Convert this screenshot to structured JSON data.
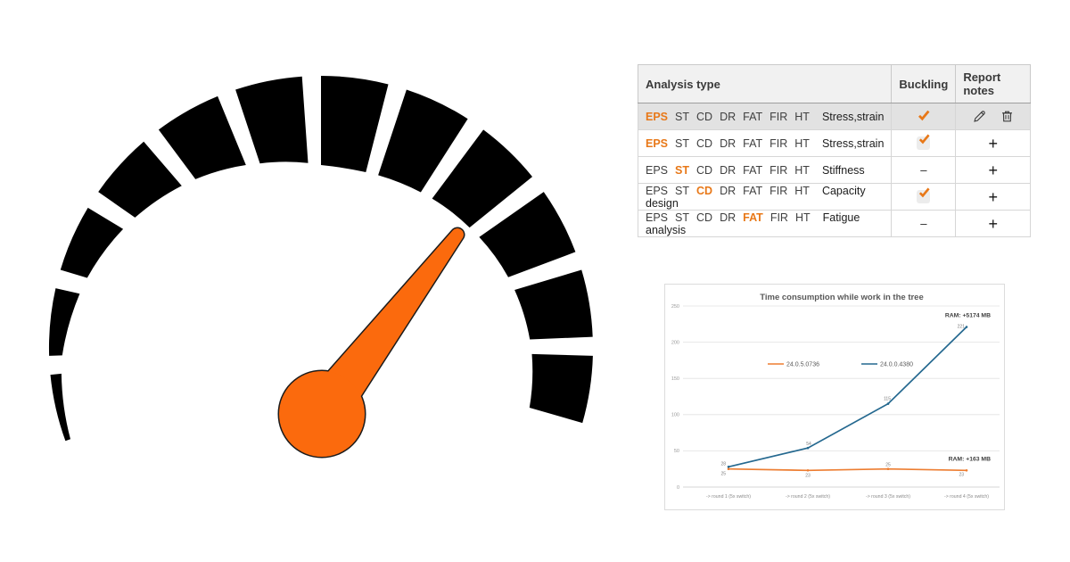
{
  "page": {
    "background": "#ffffff"
  },
  "gauge": {
    "name": "speedometer",
    "segments": 12,
    "segment_color": "#000000",
    "needle_color": "#fb6a0d",
    "needle_outline": "#1b1b1b"
  },
  "table": {
    "accent_color": "#e87818",
    "headers": [
      {
        "label": "Analysis type"
      },
      {
        "label": "Buckling"
      },
      {
        "label": "Report notes"
      }
    ],
    "icons": {
      "edit": "pencil-icon",
      "delete": "trash-icon",
      "add": "plus-icon",
      "check": "check-icon"
    },
    "rows": [
      {
        "tokens": [
          "EPS",
          "ST",
          "CD",
          "DR",
          "FAT",
          "FIR",
          "HT"
        ],
        "active_token": "EPS",
        "analysis_label": "Stress,strain",
        "buckling": "check",
        "notes": [
          "edit",
          "delete"
        ],
        "selected": true
      },
      {
        "tokens": [
          "EPS",
          "ST",
          "CD",
          "DR",
          "FAT",
          "FIR",
          "HT"
        ],
        "active_token": "EPS",
        "analysis_label": "Stress,strain",
        "buckling": "checkbox_checked",
        "notes": [
          "add"
        ],
        "selected": false
      },
      {
        "tokens": [
          "EPS",
          "ST",
          "CD",
          "DR",
          "FAT",
          "FIR",
          "HT"
        ],
        "active_token": "ST",
        "analysis_label": "Stiffness",
        "buckling": "none",
        "notes": [
          "add"
        ],
        "selected": false
      },
      {
        "tokens": [
          "EPS",
          "ST",
          "CD",
          "DR",
          "FAT",
          "FIR",
          "HT"
        ],
        "active_token": "CD",
        "analysis_label": "Capacity design",
        "buckling": "checkbox_checked",
        "notes": [
          "add"
        ],
        "selected": false
      },
      {
        "tokens": [
          "EPS",
          "ST",
          "CD",
          "DR",
          "FAT",
          "FIR",
          "HT"
        ],
        "active_token": "FAT",
        "analysis_label": "Fatigue analysis",
        "buckling": "none",
        "notes": [
          "add"
        ],
        "selected": false
      }
    ]
  },
  "chart_data": {
    "type": "line",
    "title": "Time consumption while work in the tree",
    "categories": [
      "-> round 1 (5x switch)",
      "-> round 2 (5x switch)",
      "-> round 3 (5x switch)",
      "-> round 4 (5x switch)"
    ],
    "series": [
      {
        "name": "24.0.5.0736",
        "color": "#ED7D31",
        "values": [
          25,
          23,
          25,
          23
        ],
        "point_labels": [
          "25",
          "23",
          "25",
          "23"
        ],
        "annotation": "RAM: +163 MB"
      },
      {
        "name": "24.0.0.4380",
        "color": "#24688F",
        "values": [
          28,
          54,
          115,
          221
        ],
        "point_labels": [
          "28",
          "54",
          "115",
          "221"
        ],
        "annotation": "RAM: +5174 MB"
      }
    ],
    "ylim": [
      0,
      250
    ],
    "yticks": [
      0,
      50,
      100,
      150,
      200,
      250
    ],
    "grid": true,
    "legend_position": "center",
    "xlabel": "",
    "ylabel": ""
  }
}
